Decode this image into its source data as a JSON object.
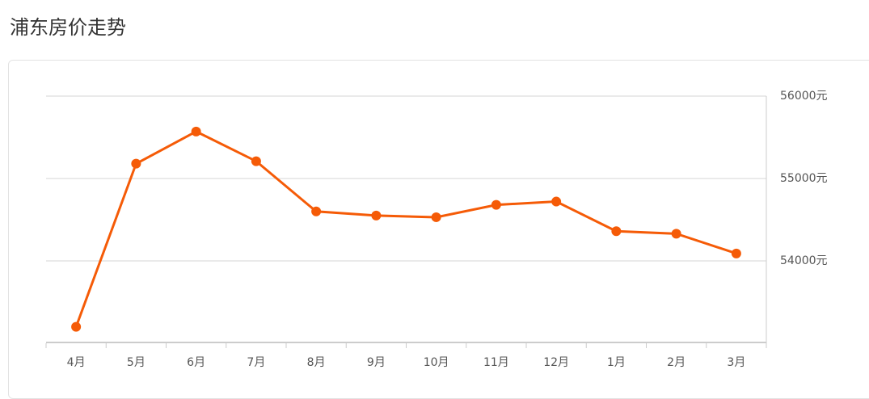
{
  "chart_data": {
    "type": "line",
    "title": "浦东房价走势",
    "categories": [
      "4月",
      "5月",
      "6月",
      "7月",
      "8月",
      "9月",
      "10月",
      "11月",
      "12月",
      "1月",
      "2月",
      "3月"
    ],
    "values": [
      53200,
      55180,
      55570,
      55210,
      54600,
      54550,
      54530,
      54680,
      54720,
      54360,
      54330,
      54090
    ],
    "color": "#f55b07",
    "ylim": [
      53000,
      56000
    ],
    "yticks": [
      {
        "value": 54000,
        "label": "54000元"
      },
      {
        "value": 55000,
        "label": "55000元"
      },
      {
        "value": 56000,
        "label": "56000元"
      }
    ],
    "grid": true
  }
}
